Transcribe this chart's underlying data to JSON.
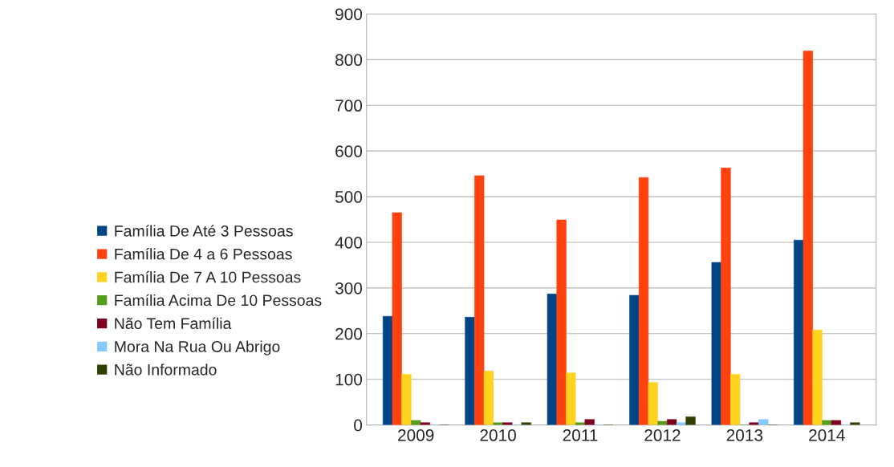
{
  "chart_data": {
    "type": "bar",
    "categories": [
      "2009",
      "2010",
      "2011",
      "2012",
      "2013",
      "2014"
    ],
    "series": [
      {
        "name": "Família De Até 3 Pessoas",
        "color": "#004586",
        "values": [
          238,
          236,
          287,
          284,
          356,
          405
        ]
      },
      {
        "name": "Família De 4 a 6 Pessoas",
        "color": "#ff420e",
        "values": [
          465,
          546,
          449,
          542,
          563,
          819
        ]
      },
      {
        "name": "Família De 7 A 10 Pessoas",
        "color": "#ffd320",
        "values": [
          111,
          118,
          114,
          93,
          111,
          208
        ]
      },
      {
        "name": "Família Acima De 10 Pessoas",
        "color": "#579d1c",
        "values": [
          10,
          5,
          5,
          8,
          0,
          10
        ]
      },
      {
        "name": "Não Tem Família",
        "color": "#7e0021",
        "values": [
          5,
          5,
          12,
          12,
          5,
          10
        ]
      },
      {
        "name": "Mora Na Rua Ou Abrigo",
        "color": "#83caff",
        "values": [
          0,
          0,
          0,
          5,
          12,
          0
        ]
      },
      {
        "name": "Não Informado",
        "color": "#314004",
        "values": [
          0,
          5,
          0,
          18,
          0,
          5
        ]
      }
    ],
    "ylim": [
      0,
      900
    ],
    "yticks": [
      0,
      100,
      200,
      300,
      400,
      500,
      600,
      700,
      800,
      900
    ],
    "grid": "y",
    "legend": "left"
  }
}
